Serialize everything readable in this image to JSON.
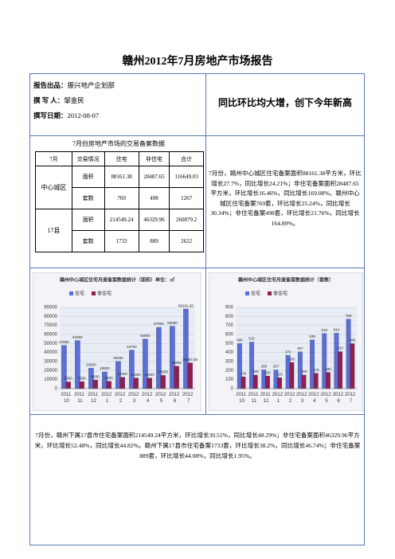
{
  "title": "赣州2012年7月房地产市场报告",
  "meta": [
    {
      "label": "报告出品：",
      "value": "振兴地产企划部"
    },
    {
      "label": "撰 写 人：",
      "value": "邹金民"
    },
    {
      "label": "撰写日期：",
      "value": "2012-08-07"
    }
  ],
  "headline": "同比环比均大增，创下今年新高",
  "table": {
    "title": "7月份房地产市场的交易备案数据",
    "headers": [
      "7月",
      "交易情况",
      "住宅",
      "非住宅",
      "合计"
    ],
    "groups": [
      {
        "name": "中心城区",
        "rows": [
          [
            "面积",
            "88161.38",
            "28487.65",
            "116649.03"
          ],
          [
            "套数",
            "769",
            "498",
            "1267"
          ]
        ]
      },
      {
        "name": "17县",
        "rows": [
          [
            "面积",
            "214549.24",
            "46329.96",
            "260879.2"
          ],
          [
            "套数",
            "1733",
            "889",
            "2622"
          ]
        ]
      }
    ]
  },
  "summary": "7月份，赣州中心城区住宅备案面积88161.38平方米，环比增长27.7%，同比增长24.21%；非住宅备案面积28487.65平方米，环比增长16.46%，同比增长169.08%。赣州中心城区住宅备案769套，环比增长25.24%，同比增长30.34%；非住宅备案498套，环比增长21.76%，同比增长164.89%。",
  "county_text": "7月份，赣州下属17县市住宅备案面积214549.24平方米，环比增长30.51%，同比增长48.29%；非住宅备案面积46329.96平方米，环比增长52.48%，同比增长44.82%。赣州下属17县市住宅备案1733套，环比增长38.2%，同比增长46.74%；非住宅备案889套，环比增长44.08%，同比增长1.95%。",
  "chart_data": [
    {
      "type": "bar",
      "title": "赣州中心城区住宅月度备案数据统计（面积）单位：㎡",
      "categories": [
        "2011 10",
        "2011 11",
        "2011 12",
        "2012 1",
        "2012 2",
        "2012 3",
        "2012 4",
        "2012 5",
        "2012 6",
        "2012 7"
      ],
      "series": [
        {
          "name": "住宅",
          "color": "#5b6fd8",
          "values": [
            47800,
            53300,
            22600,
            18500,
            30200,
            42700,
            54800,
            67900,
            69000,
            88161.38
          ]
        },
        {
          "name": "非住宅",
          "color": "#8e1f4f",
          "values": [
            7500,
            7800,
            9500,
            8200,
            12500,
            11800,
            11600,
            14600,
            24800,
            28487.65
          ]
        }
      ],
      "ylim": [
        0,
        90000
      ],
      "yticks": [
        0,
        10000,
        20000,
        30000,
        40000,
        50000,
        60000,
        70000,
        80000,
        90000
      ],
      "grid": true
    },
    {
      "type": "bar",
      "title": "赣州中心城区住宅月度备案数据统计（套数）",
      "categories": [
        "2011 10",
        "2011 11",
        "2011 12",
        "2012 1",
        "2012 2",
        "2012 3",
        "2012 4",
        "2012 5",
        "2012 6",
        "2012 7"
      ],
      "series": [
        {
          "name": "住宅",
          "color": "#5b6fd8",
          "values": [
            499,
            516,
            208,
            207,
            370,
            407,
            539,
            610,
            614,
            769
          ]
        },
        {
          "name": "非住宅",
          "color": "#8e1f4f",
          "values": [
            130,
            150,
            140,
            120,
            290,
            150,
            170,
            180,
            410,
            498
          ]
        }
      ],
      "ylim": [
        0,
        900
      ],
      "yticks": [
        0,
        100,
        200,
        300,
        400,
        500,
        600,
        700,
        800,
        900
      ],
      "grid": true
    }
  ]
}
